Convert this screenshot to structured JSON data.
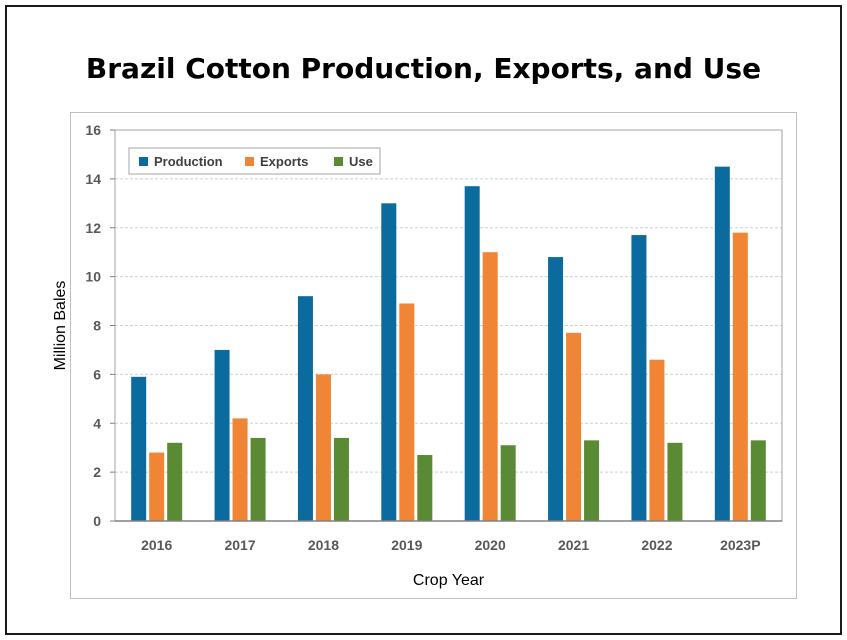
{
  "title": "Brazil Cotton Production, Exports, and Use",
  "chart_data": {
    "type": "bar",
    "title": "Brazil Cotton Production, Exports, and Use",
    "xlabel": "Crop Year",
    "ylabel": "Million Bales",
    "ylim": [
      0,
      16
    ],
    "yticks": [
      "0",
      "2",
      "4",
      "6",
      "8",
      "10",
      "12",
      "14",
      "16"
    ],
    "grid": true,
    "legend_position": "top-left",
    "categories": [
      "2016",
      "2017",
      "2018",
      "2019",
      "2020",
      "2021",
      "2022",
      "2023P"
    ],
    "series": [
      {
        "name": "Production",
        "color": "#0b6a9e",
        "values": [
          5.9,
          7.0,
          9.2,
          13.0,
          13.7,
          10.8,
          11.7,
          14.5
        ]
      },
      {
        "name": "Exports",
        "color": "#ef8535",
        "values": [
          2.8,
          4.2,
          6.0,
          8.9,
          11.0,
          7.7,
          6.6,
          11.8
        ]
      },
      {
        "name": "Use",
        "color": "#5a8a33",
        "values": [
          3.2,
          3.4,
          3.4,
          2.7,
          3.1,
          3.3,
          3.2,
          3.3
        ]
      }
    ]
  }
}
